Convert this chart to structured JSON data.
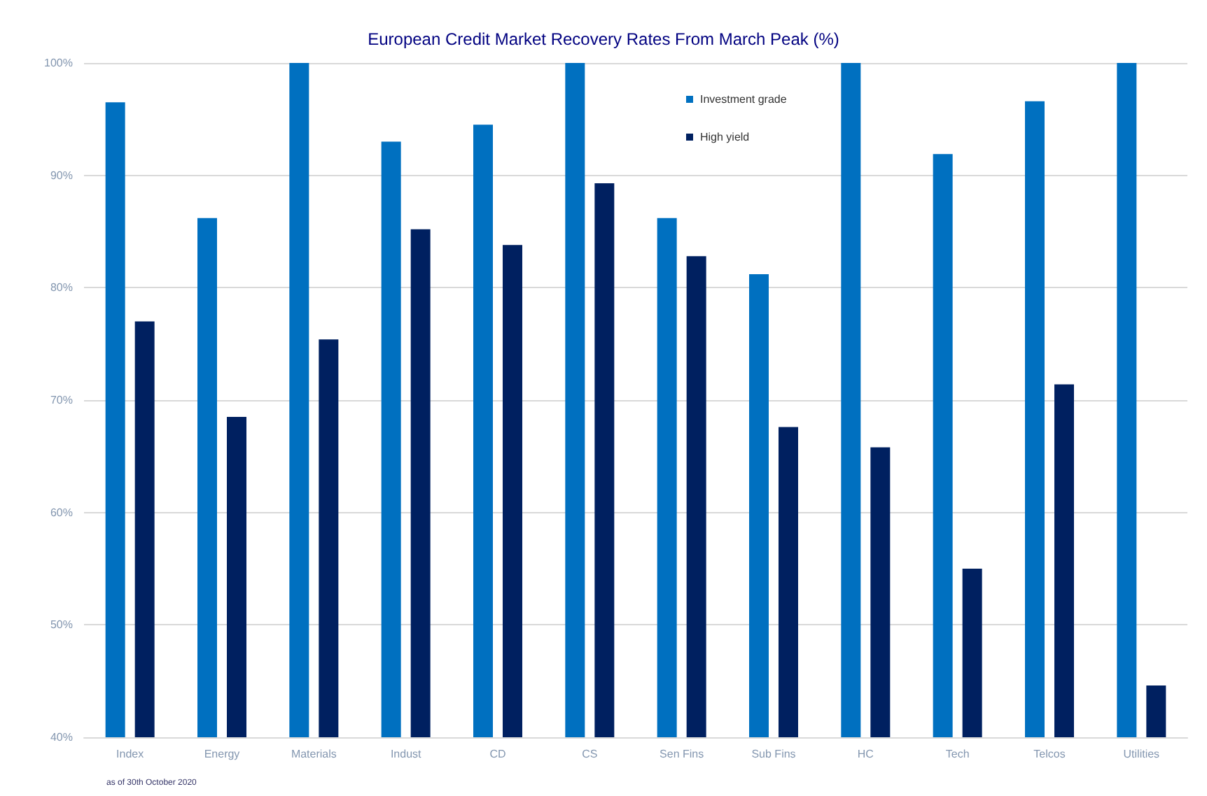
{
  "chart_data": {
    "type": "bar",
    "title": "European Credit Market Recovery Rates From March Peak (%)",
    "categories": [
      "Index",
      "Energy",
      "Materials",
      "Indust",
      "CD",
      "CS",
      "Sen Fins",
      "Sub Fins",
      "HC",
      "Tech",
      "Telcos",
      "Utilities"
    ],
    "series": [
      {
        "name": "Investment grade",
        "color": "#0070c0",
        "values": [
          96.5,
          86.2,
          100,
          93.0,
          94.5,
          100,
          86.2,
          81.2,
          100,
          91.9,
          96.6,
          100
        ]
      },
      {
        "name": "High yield",
        "color": "#002060",
        "values": [
          77.0,
          68.5,
          75.4,
          85.2,
          83.8,
          89.3,
          82.8,
          67.6,
          65.8,
          55.0,
          71.4,
          44.6
        ]
      }
    ],
    "ylim": [
      40,
      100
    ],
    "yticks": [
      {
        "value": 40,
        "label": "40%"
      },
      {
        "value": 50,
        "label": "50%"
      },
      {
        "value": 60,
        "label": "60%"
      },
      {
        "value": 70,
        "label": "70%"
      },
      {
        "value": 80,
        "label": "80%"
      },
      {
        "value": 90,
        "label": "90%"
      },
      {
        "value": 100,
        "label": "100%"
      }
    ],
    "grid": "y",
    "legend": "top",
    "annotations": [
      "as of 30th October 2020"
    ]
  }
}
